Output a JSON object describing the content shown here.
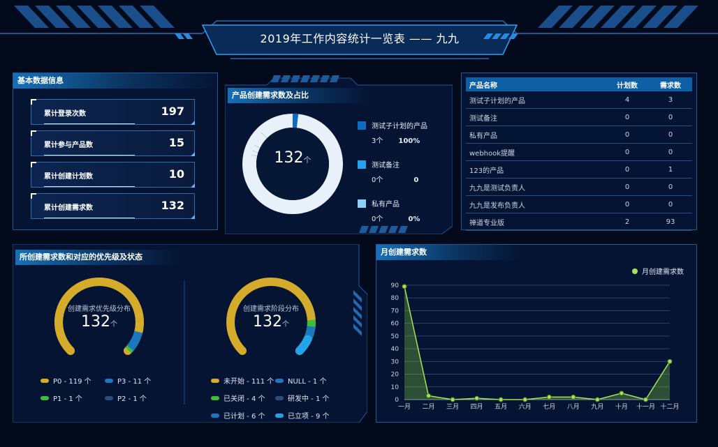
{
  "header": {
    "title": "2019年工作内容统计一览表 —— 九九"
  },
  "basic": {
    "title": "基本数据信息",
    "stats": [
      {
        "label": "累计登录次数",
        "value": "197"
      },
      {
        "label": "累计参与产品数",
        "value": "15"
      },
      {
        "label": "累计创建计划数",
        "value": "10"
      },
      {
        "label": "累计创建需求数",
        "value": "132"
      }
    ]
  },
  "product_demand": {
    "title": "产品创建需求数及占比",
    "total": "132",
    "unit": "个",
    "legend": [
      {
        "name": "测试子计划的产品",
        "count": "3个",
        "pct": "100%",
        "color": "#0d6cc0"
      },
      {
        "name": "测试备注",
        "count": "0个",
        "pct": "0",
        "color": "#22a3ea"
      },
      {
        "name": "私有产品",
        "count": "0个",
        "pct": "0%",
        "color": "#8cd0f5"
      }
    ]
  },
  "product_table": {
    "headers": [
      "产品名称",
      "计划数",
      "需求数"
    ],
    "rows": [
      [
        "测试子计划的产品",
        "4",
        "3"
      ],
      [
        "测试备注",
        "0",
        "0"
      ],
      [
        "私有产品",
        "0",
        "0"
      ],
      [
        "webhook提醒",
        "0",
        "0"
      ],
      [
        "123的产品",
        "0",
        "1"
      ],
      [
        "九九是测试负责人",
        "0",
        "0"
      ],
      [
        "九九是发布负责人",
        "0",
        "0"
      ],
      [
        "禅道专业版",
        "2",
        "93"
      ]
    ]
  },
  "priority": {
    "title": "所创建需求数和对应的优先级及状态",
    "gauge1": {
      "label": "创建需求优先级分布",
      "total": "132",
      "unit": "个"
    },
    "gauge2": {
      "label": "创建需求阶段分布",
      "total": "132",
      "unit": "个"
    },
    "legend1": [
      {
        "text": "P0 - 119 个",
        "color": "#d4ab2a"
      },
      {
        "text": "P3 - 11 个",
        "color": "#1a78c0"
      },
      {
        "text": "P1 - 1 个",
        "color": "#3dbb3d"
      },
      {
        "text": "P2 - 1 个",
        "color": "#2b4e7c"
      }
    ],
    "legend2": [
      {
        "text": "未开始 - 111 个",
        "color": "#d4ab2a"
      },
      {
        "text": "NULL - 1 个",
        "color": "#1a78c0"
      },
      {
        "text": "已关闭 - 4 个",
        "color": "#3dbb3d"
      },
      {
        "text": "研发中 - 1 个",
        "color": "#2b4e7c"
      },
      {
        "text": "已计划 - 6 个",
        "color": "#1a78c0"
      },
      {
        "text": "已立项 - 9 个",
        "color": "#22a3ea"
      }
    ]
  },
  "monthly": {
    "title": "月创建需求数",
    "legend": "月创建需求数"
  },
  "chart_data": {
    "type": "line",
    "title": "月创建需求数",
    "categories": [
      "一月",
      "二月",
      "三月",
      "四月",
      "五月",
      "六月",
      "七月",
      "八月",
      "九月",
      "十月",
      "十一月",
      "十二月"
    ],
    "series": [
      {
        "name": "月创建需求数",
        "values": [
          89,
          3,
          0,
          1,
          0,
          0,
          2,
          2,
          0,
          5,
          0,
          30
        ]
      }
    ],
    "ylim": [
      0,
      90
    ],
    "yticks": [
      0,
      10,
      20,
      30,
      40,
      50,
      60,
      70,
      80,
      90
    ],
    "legend": "top-right",
    "grid": true,
    "color": "#a6e35a"
  }
}
